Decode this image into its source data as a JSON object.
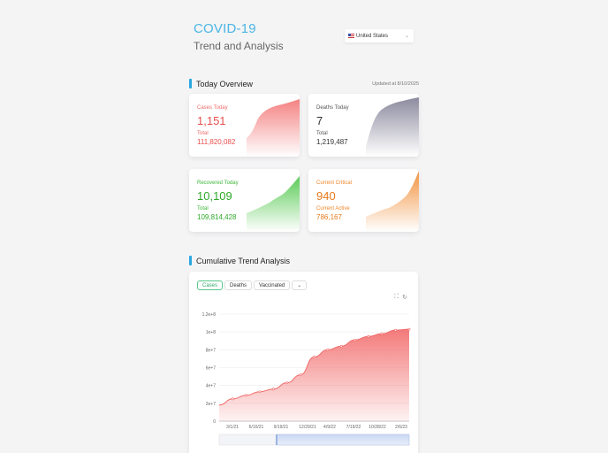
{
  "header": {
    "title": "COVID-19",
    "subtitle": "Trend and Analysis"
  },
  "country_select": {
    "value": "United States"
  },
  "overview": {
    "title": "Today Overview",
    "updated": "Updated at 8/10/2025",
    "cards": [
      {
        "label": "Cases Today",
        "value": "1,151",
        "total_label": "Total",
        "total": "111,820,082",
        "color": "#f26b6b"
      },
      {
        "label": "Deaths Today",
        "value": "7",
        "total_label": "Total",
        "total": "1,219,487",
        "color": "#6f6d86"
      },
      {
        "label": "Recovered Today",
        "value": "10,109",
        "total_label": "Total",
        "total": "109,814,428",
        "color": "#3fc23a"
      },
      {
        "label": "Current Critical",
        "value": "940",
        "total_label": "Current Active",
        "total": "786,167",
        "color": "#f0862a"
      }
    ]
  },
  "trend": {
    "title": "Cumulative Trend Analysis",
    "tabs": [
      "Cases",
      "Deaths",
      "Vaccinated"
    ],
    "active_tab": "Cases"
  },
  "chart_data": {
    "type": "area",
    "x": [
      "10/2020",
      "1/2021",
      "3/2021",
      "6/2021",
      "8/2021",
      "10/2021",
      "12/2021",
      "1/2022",
      "4/2022",
      "5/2022",
      "7/2022",
      "9/2022",
      "11/2022",
      "2/2023",
      "3/2023"
    ],
    "series": [
      {
        "values": [
          18000000,
          25000000,
          29000000,
          33000000,
          36000000,
          43000000,
          52000000,
          72000000,
          80000000,
          84000000,
          91000000,
          95000000,
          98000000,
          102000000,
          103000000
        ]
      }
    ],
    "x_ticks": [
      "3/1/21",
      "6/10/21",
      "9/19/21",
      "12/29/21",
      "4/9/22",
      "7/19/22",
      "10/28/22",
      "2/6/23"
    ],
    "y_ticks": [
      "0",
      "2e+7",
      "4e+7",
      "6e+7",
      "8e+7",
      "1e+8",
      "1.2e+8"
    ],
    "ylim": [
      0,
      120000000
    ],
    "grid": true,
    "colors": {
      "line": "#f26b6b",
      "fill": "#f26b6b"
    }
  }
}
